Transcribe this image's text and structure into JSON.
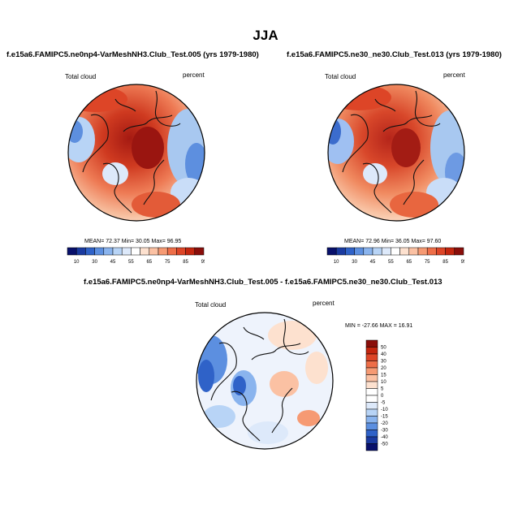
{
  "season": "JJA",
  "panels": {
    "top_left": {
      "title": "f.e15a6.FAMIPC5.ne0np4-VarMeshNH3.Club_Test.005 (yrs 1979-1980)",
      "variable": "Total cloud",
      "units": "percent",
      "stats": "MEAN= 72.37  Min= 30.05  Max= 96.95"
    },
    "top_right": {
      "title": "f.e15a6.FAMIPC5.ne30_ne30.Club_Test.013 (yrs 1979-1980)",
      "variable": "Total cloud",
      "units": "percent",
      "stats": "MEAN= 72.96  Min= 36.05  Max= 97.60"
    },
    "bottom": {
      "title": "f.e15a6.FAMIPC5.ne0np4-VarMeshNH3.Club_Test.005 - f.e15a6.FAMIPC5.ne30_ne30.Club_Test.013",
      "variable": "Total cloud",
      "units": "percent",
      "stats": "MIN = -27.66 MAX =  16.91"
    }
  },
  "colorbar_abs": {
    "labels": [
      "10",
      "30",
      "45",
      "55",
      "65",
      "75",
      "85",
      "95"
    ],
    "colors": [
      "#08106b",
      "#1a3aa0",
      "#2f62c8",
      "#5c8fe0",
      "#8ab4ee",
      "#b8d4f6",
      "#dde9fa",
      "#ffffff",
      "#fde1cf",
      "#fbc1a3",
      "#f69a73",
      "#ee6e48",
      "#dd4527",
      "#c3260f",
      "#8a0e0a"
    ]
  },
  "colorbar_diff": {
    "labels": [
      "50",
      "40",
      "30",
      "20",
      "15",
      "10",
      "5",
      "0",
      "-5",
      "-10",
      "-15",
      "-20",
      "-30",
      "-40",
      "-50"
    ],
    "colors": [
      "#8a0e0a",
      "#c3260f",
      "#dd4527",
      "#ee6e48",
      "#f69a73",
      "#fbc1a3",
      "#fde1cf",
      "#ffffff",
      "#ffffff",
      "#dde9fa",
      "#b8d4f6",
      "#8ab4ee",
      "#5c8fe0",
      "#2f62c8",
      "#1a3aa0",
      "#08106b"
    ]
  }
}
